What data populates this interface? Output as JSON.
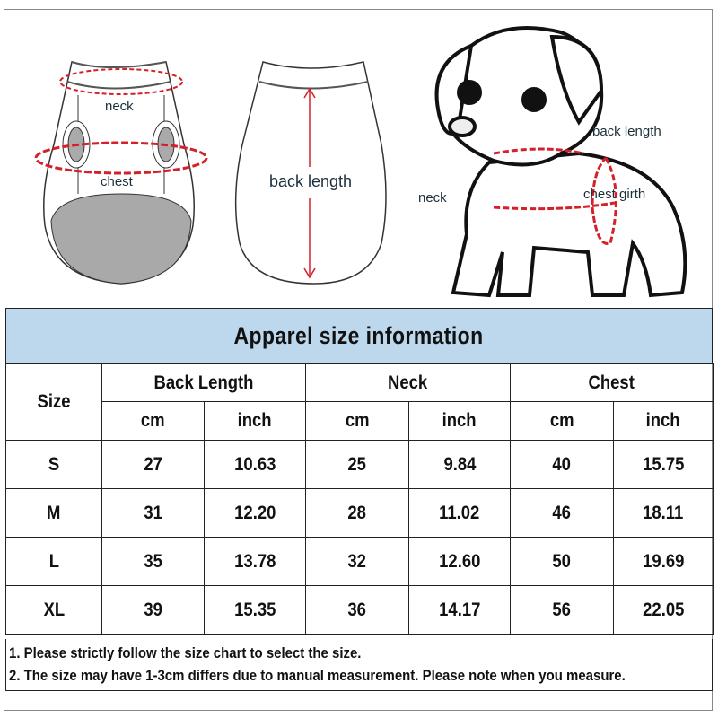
{
  "illustrations": {
    "vest_front": {
      "neck_label": "neck",
      "chest_label": "chest"
    },
    "vest_back": {
      "back_length_label": "back length"
    },
    "dog": {
      "back_length_label": "back length",
      "neck_label": "neck",
      "chest_girth_label": "chest girth"
    }
  },
  "colors": {
    "header_bg": "#bdd7ec",
    "measure_line": "#d4202a"
  },
  "table": {
    "title": "Apparel size information",
    "size_header": "Size",
    "groups": [
      "Back Length",
      "Neck",
      "Chest"
    ],
    "units": [
      "cm",
      "inch",
      "cm",
      "inch",
      "cm",
      "inch"
    ],
    "rows": [
      {
        "size": "S",
        "values": [
          "27",
          "10.63",
          "25",
          "9.84",
          "40",
          "15.75"
        ]
      },
      {
        "size": "M",
        "values": [
          "31",
          "12.20",
          "28",
          "11.02",
          "46",
          "18.11"
        ]
      },
      {
        "size": "L",
        "values": [
          "35",
          "13.78",
          "32",
          "12.60",
          "50",
          "19.69"
        ]
      },
      {
        "size": "XL",
        "values": [
          "39",
          "15.35",
          "36",
          "14.17",
          "56",
          "22.05"
        ]
      }
    ]
  },
  "notes": [
    "1. Please strictly follow the size chart  to select the size.",
    "2. The size may have 1-3cm differs due to manual measurement. Please note when you measure."
  ]
}
